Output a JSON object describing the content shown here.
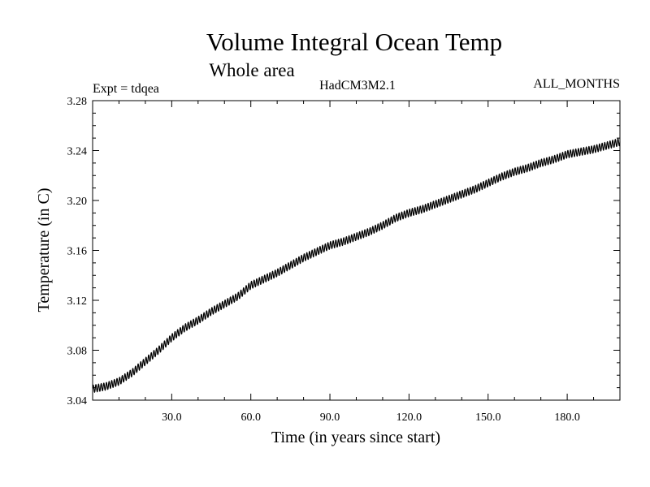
{
  "chart_data": {
    "type": "line",
    "title": "Volume Integral Ocean Temp",
    "subtitle": "Whole area",
    "annotations": {
      "left": "Expt = tdqea",
      "center": "HadCM3M2.1",
      "right": "ALL_MONTHS"
    },
    "xlabel": "Time (in years since start)",
    "ylabel": "Temperature (in C)",
    "xlim": [
      0,
      200
    ],
    "ylim": [
      3.04,
      3.28
    ],
    "xticks": [
      30,
      60,
      90,
      120,
      150,
      180
    ],
    "xtick_labels": [
      "30.0",
      "60.0",
      "90.0",
      "120.0",
      "150.0",
      "180.0"
    ],
    "yticks": [
      3.04,
      3.08,
      3.12,
      3.16,
      3.2,
      3.24,
      3.28
    ],
    "ytick_labels": [
      "3.04",
      "3.08",
      "3.12",
      "3.16",
      "3.20",
      "3.24",
      "3.28"
    ],
    "grid": false,
    "series": [
      {
        "name": "ALL_MONTHS",
        "color": "#000000",
        "x": [
          0,
          5,
          10,
          15,
          20,
          25,
          30,
          35,
          40,
          45,
          50,
          55,
          60,
          65,
          70,
          75,
          80,
          85,
          90,
          95,
          100,
          105,
          110,
          115,
          120,
          125,
          130,
          135,
          140,
          145,
          150,
          155,
          160,
          165,
          170,
          175,
          180,
          185,
          190,
          195,
          200
        ],
        "values": [
          3.049,
          3.051,
          3.055,
          3.062,
          3.071,
          3.08,
          3.09,
          3.098,
          3.104,
          3.111,
          3.117,
          3.123,
          3.132,
          3.137,
          3.142,
          3.148,
          3.154,
          3.159,
          3.164,
          3.167,
          3.171,
          3.175,
          3.18,
          3.186,
          3.19,
          3.193,
          3.197,
          3.201,
          3.205,
          3.209,
          3.214,
          3.219,
          3.223,
          3.226,
          3.23,
          3.233,
          3.237,
          3.239,
          3.241,
          3.244,
          3.247
        ],
        "seasonal_amplitude": 0.003
      }
    ]
  }
}
